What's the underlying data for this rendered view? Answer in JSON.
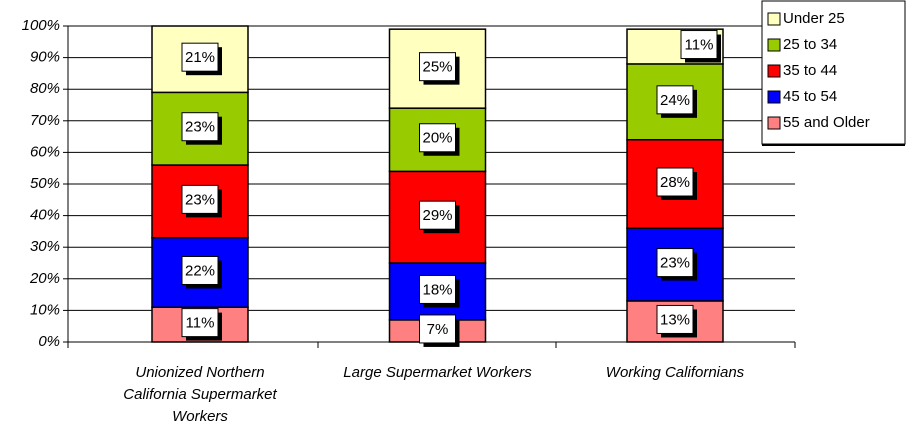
{
  "chart_data": {
    "type": "stacked_bar",
    "categories": [
      "Unionized Northern California Supermarket Workers",
      "Large Supermarket Workers",
      "Working Californians"
    ],
    "series": [
      {
        "name": "55 and Older",
        "color": "#ff8080",
        "values": [
          11,
          7,
          13
        ],
        "value_labels": [
          "11%",
          "7%",
          "13%"
        ]
      },
      {
        "name": "45 to 54",
        "color": "#0000ff",
        "values": [
          22,
          18,
          23
        ],
        "value_labels": [
          "22%",
          "18%",
          "23%"
        ]
      },
      {
        "name": "35 to 44",
        "color": "#ff0000",
        "values": [
          23,
          29,
          28
        ],
        "value_labels": [
          "23%",
          "29%",
          "28%"
        ]
      },
      {
        "name": "25 to 34",
        "color": "#99cc00",
        "values": [
          23,
          20,
          24
        ],
        "value_labels": [
          "23%",
          "20%",
          "24%"
        ]
      },
      {
        "name": "Under 25",
        "color": "#ffffc0",
        "values": [
          21,
          25,
          11
        ],
        "value_labels": [
          "21%",
          "25%",
          "11%"
        ]
      }
    ],
    "ylim": [
      0,
      100
    ],
    "yticks": [
      {
        "value": 0,
        "label": "0%"
      },
      {
        "value": 10,
        "label": "10%"
      },
      {
        "value": 20,
        "label": "20%"
      },
      {
        "value": 30,
        "label": "30%"
      },
      {
        "value": 40,
        "label": "40%"
      },
      {
        "value": 50,
        "label": "50%"
      },
      {
        "value": 60,
        "label": "60%"
      },
      {
        "value": 70,
        "label": "70%"
      },
      {
        "value": 80,
        "label": "80%"
      },
      {
        "value": 90,
        "label": "90%"
      },
      {
        "value": 100,
        "label": "100%"
      }
    ],
    "grid": true,
    "legend": "top-right"
  }
}
